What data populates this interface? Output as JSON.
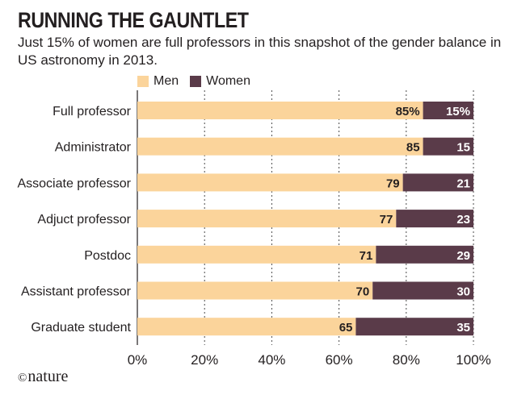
{
  "title": "RUNNING THE GAUNTLET",
  "subtitle": "Just 15% of women are full professors in this snapshot of the gender balance in US astronomy in 2013.",
  "footer": {
    "symbol": "©",
    "brand": "nature"
  },
  "colors": {
    "men": "#fbd49b",
    "women": "#5a3b49",
    "grid": "#4a4a4a"
  },
  "chart_data": {
    "type": "bar",
    "orientation": "horizontal",
    "stacked": true,
    "title": "RUNNING THE GAUNTLET",
    "categories": [
      "Full professor",
      "Administrator",
      "Associate professor",
      "Adjuct professor",
      "Postdoc",
      "Assistant professor",
      "Graduate student"
    ],
    "series": [
      {
        "name": "Men",
        "values": [
          85,
          85,
          79,
          77,
          71,
          70,
          65
        ]
      },
      {
        "name": "Women",
        "values": [
          15,
          15,
          21,
          23,
          29,
          30,
          35
        ]
      }
    ],
    "value_labels": {
      "Men": [
        "85%",
        "85",
        "79",
        "77",
        "71",
        "70",
        "65"
      ],
      "Women": [
        "15%",
        "15",
        "21",
        "23",
        "29",
        "30",
        "35"
      ]
    },
    "xlim": [
      0,
      100
    ],
    "xticks": [
      "0%",
      "20%",
      "40%",
      "60%",
      "80%",
      "100%"
    ],
    "legend": "top",
    "grid": "vertical-dashed"
  }
}
